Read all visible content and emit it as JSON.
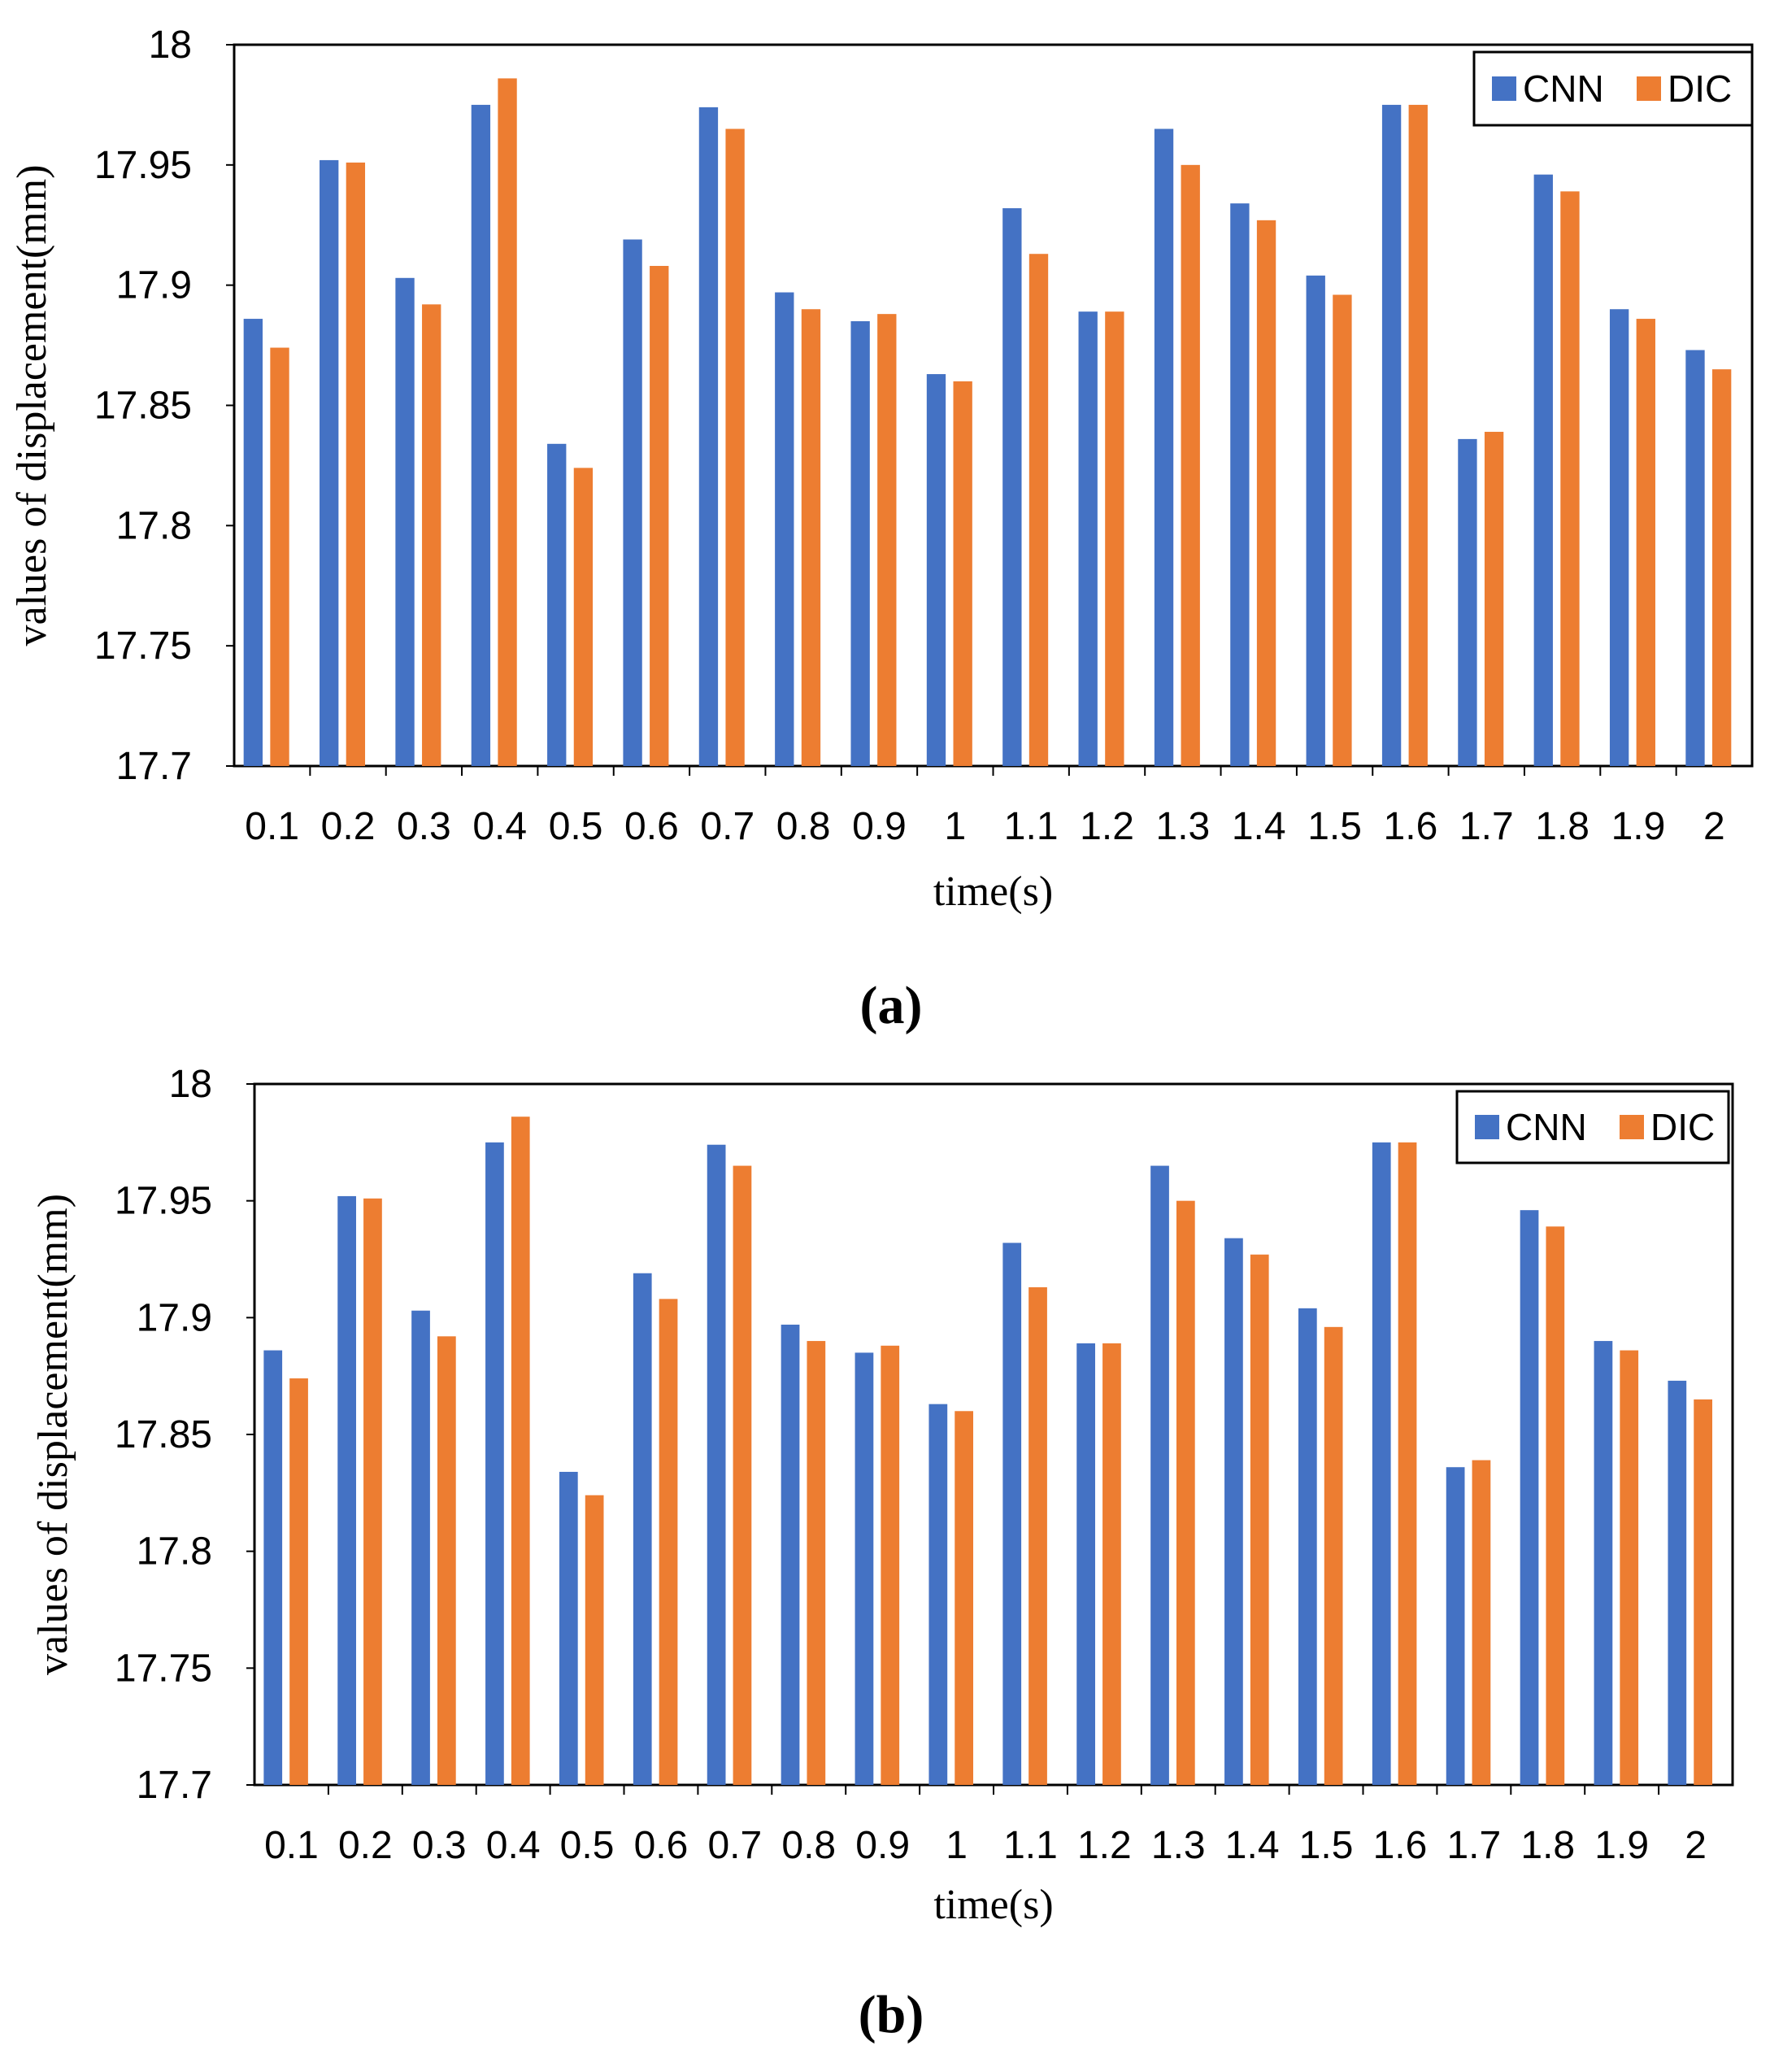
{
  "series_colors": {
    "CNN": "#4472C4",
    "DIC": "#ED7D31"
  },
  "chart_data": [
    {
      "type": "bar",
      "caption": "(a)",
      "xlabel": "time(s)",
      "ylabel": "values of displacement(mm)",
      "ylim": [
        17.7,
        18
      ],
      "yticks": [
        "17.7",
        "17.75",
        "17.8",
        "17.85",
        "17.9",
        "17.95",
        "18"
      ],
      "legend": [
        "CNN",
        "DIC"
      ],
      "legend_position": "top-right",
      "categories": [
        "0.1",
        "0.2",
        "0.3",
        "0.4",
        "0.5",
        "0.6",
        "0.7",
        "0.8",
        "0.9",
        "1",
        "1.1",
        "1.2",
        "1.3",
        "1.4",
        "1.5",
        "1.6",
        "1.7",
        "1.8",
        "1.9",
        "2"
      ],
      "series": [
        {
          "name": "CNN",
          "values": [
            17.886,
            17.952,
            17.903,
            17.975,
            17.834,
            17.919,
            17.974,
            17.897,
            17.885,
            17.863,
            17.932,
            17.889,
            17.965,
            17.934,
            17.904,
            17.975,
            17.836,
            17.946,
            17.89,
            17.873
          ]
        },
        {
          "name": "DIC",
          "values": [
            17.874,
            17.951,
            17.892,
            17.986,
            17.824,
            17.908,
            17.965,
            17.89,
            17.888,
            17.86,
            17.913,
            17.889,
            17.95,
            17.927,
            17.896,
            17.975,
            17.839,
            17.939,
            17.886,
            17.865
          ]
        }
      ]
    },
    {
      "type": "bar",
      "caption": "(b)",
      "xlabel": "time(s)",
      "ylabel": "values of displacement(mm)",
      "ylim": [
        17.7,
        18
      ],
      "yticks": [
        "17.7",
        "17.75",
        "17.8",
        "17.85",
        "17.9",
        "17.95",
        "18"
      ],
      "legend": [
        "CNN",
        "DIC"
      ],
      "legend_position": "top-right",
      "categories": [
        "0.1",
        "0.2",
        "0.3",
        "0.4",
        "0.5",
        "0.6",
        "0.7",
        "0.8",
        "0.9",
        "1",
        "1.1",
        "1.2",
        "1.3",
        "1.4",
        "1.5",
        "1.6",
        "1.7",
        "1.8",
        "1.9",
        "2"
      ],
      "series": [
        {
          "name": "CNN",
          "values": [
            17.886,
            17.952,
            17.903,
            17.975,
            17.834,
            17.919,
            17.974,
            17.897,
            17.885,
            17.863,
            17.932,
            17.889,
            17.965,
            17.934,
            17.904,
            17.975,
            17.836,
            17.946,
            17.89,
            17.873
          ]
        },
        {
          "name": "DIC",
          "values": [
            17.874,
            17.951,
            17.892,
            17.986,
            17.824,
            17.908,
            17.965,
            17.89,
            17.888,
            17.86,
            17.913,
            17.889,
            17.95,
            17.927,
            17.896,
            17.975,
            17.839,
            17.939,
            17.886,
            17.865
          ]
        }
      ]
    }
  ]
}
